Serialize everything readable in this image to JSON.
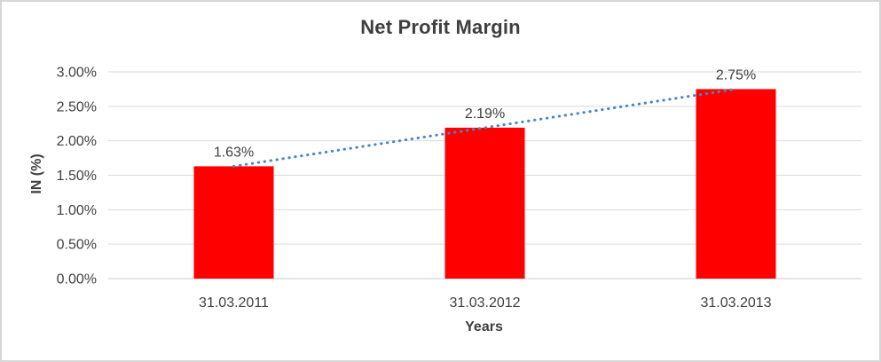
{
  "chart_data": {
    "type": "bar",
    "title": "Net Profit Margin",
    "xlabel": "Years",
    "ylabel": "IN (%)",
    "categories": [
      "31.03.2011",
      "31.03.2012",
      "31.03.2013"
    ],
    "values": [
      1.63,
      2.19,
      2.75
    ],
    "data_labels": [
      "1.63%",
      "2.19%",
      "2.75%"
    ],
    "ylim": [
      0,
      3
    ],
    "ytick_step": 0.5,
    "ytick_labels": [
      "0.00%",
      "0.50%",
      "1.00%",
      "1.50%",
      "2.00%",
      "2.50%",
      "3.00%"
    ],
    "grid": true,
    "legend_position": "none",
    "trendline": {
      "style": "dotted",
      "from_value": 1.63,
      "to_value": 2.75
    },
    "colors": {
      "bar": "#ff0000",
      "trendline": "#4a86c8",
      "gridline": "#d9d9d9",
      "axis_line": "#c8c8c8",
      "text": "#404040",
      "title_text": "#3f3f3f",
      "frame_border": "#d6d6d6"
    }
  }
}
